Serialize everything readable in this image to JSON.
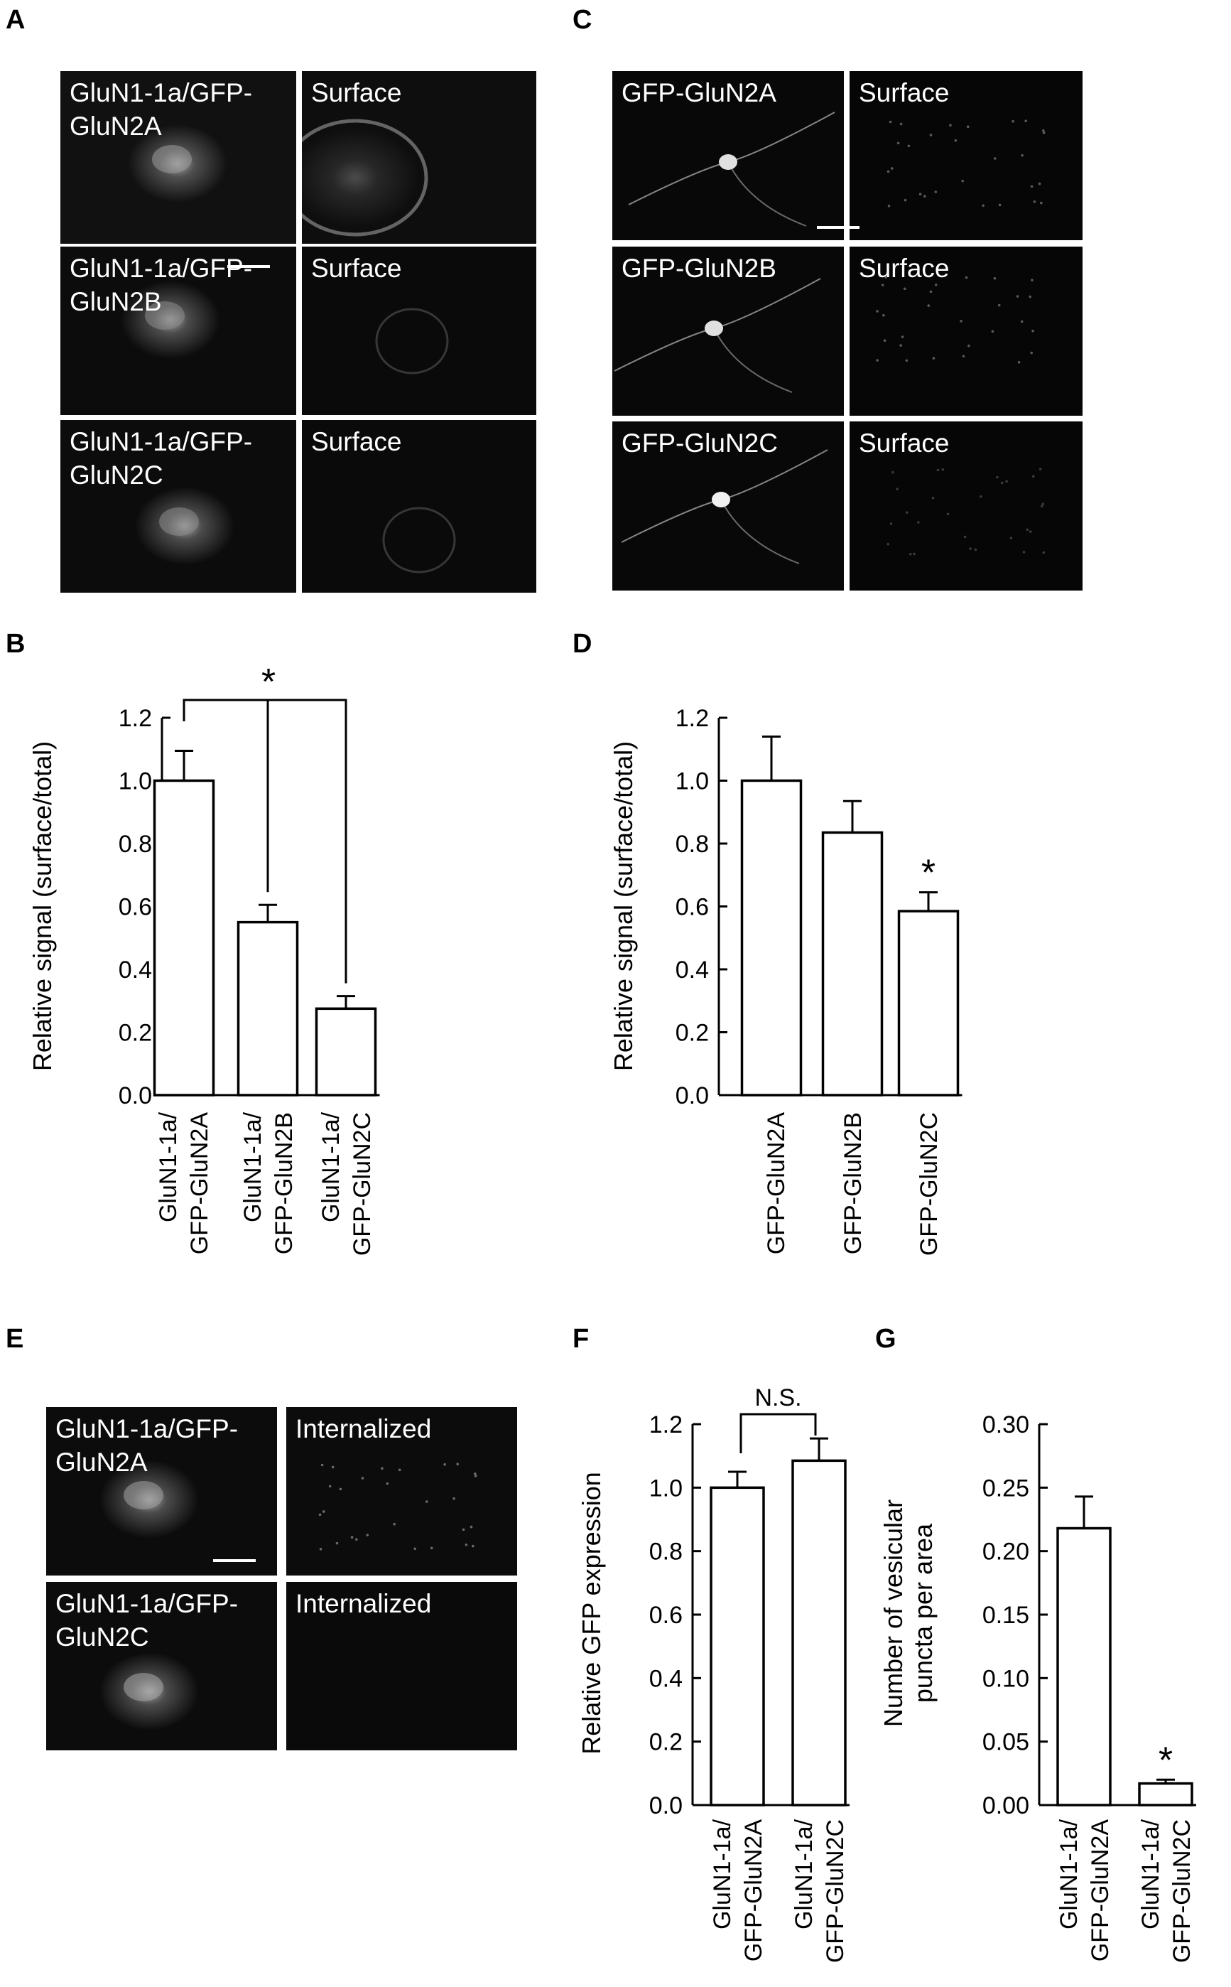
{
  "panels": {
    "A": {
      "label": "A",
      "cells": [
        {
          "lines": [
            "GluN1-1a/GFP-",
            "GluN2A"
          ],
          "bg": "#111111",
          "glow": "#9a9a9a"
        },
        {
          "lines": [
            "Surface"
          ],
          "bg": "#0e0e0e",
          "glow": "#7a7a7a"
        },
        {
          "lines": [
            "GluN1-1a/GFP-",
            "GluN2B"
          ],
          "bg": "#0c0c0c",
          "glow": "#8a8a8a"
        },
        {
          "lines": [
            "Surface"
          ],
          "bg": "#0a0a0a",
          "glow": "#4a4a4a"
        },
        {
          "lines": [
            "GluN1-1a/GFP-",
            "GluN2C"
          ],
          "bg": "#0c0c0c",
          "glow": "#8c8c8c"
        },
        {
          "lines": [
            "Surface"
          ],
          "bg": "#0a0a0a",
          "glow": "#4a4a4a"
        }
      ]
    },
    "C": {
      "label": "C",
      "cells": [
        {
          "lines": [
            "GFP-GluN2A"
          ],
          "bg": "#080808",
          "glow": "#e0e0e0"
        },
        {
          "lines": [
            "Surface"
          ],
          "bg": "#060606",
          "glow": "#5a5a5a"
        },
        {
          "lines": [
            "GFP-GluN2B"
          ],
          "bg": "#080808",
          "glow": "#e0e0e0"
        },
        {
          "lines": [
            "Surface"
          ],
          "bg": "#060606",
          "glow": "#5a5a5a"
        },
        {
          "lines": [
            "GFP-GluN2C"
          ],
          "bg": "#080808",
          "glow": "#f0f0f0"
        },
        {
          "lines": [
            "Surface"
          ],
          "bg": "#060606",
          "glow": "#3a3a3a"
        }
      ]
    },
    "E": {
      "label": "E",
      "cells": [
        {
          "lines": [
            "GluN1-1a/GFP-",
            "GluN2A"
          ],
          "bg": "#0c0c0c",
          "glow": "#a0a0a0"
        },
        {
          "lines": [
            "Internalized"
          ],
          "bg": "#0c0c0c",
          "glow": "#6a6a6a"
        },
        {
          "lines": [
            "GluN1-1a/GFP-",
            "GluN2C"
          ],
          "bg": "#0c0c0c",
          "glow": "#a8a8a8"
        },
        {
          "lines": [
            "Internalized"
          ],
          "bg": "#0a0a0a",
          "glow": "#1a1a1a"
        }
      ]
    }
  },
  "chart_data": [
    {
      "panel": "B",
      "type": "bar",
      "ylabel": "Relative signal (surface/total)",
      "ylim": [
        0,
        1.2
      ],
      "yticks": [
        "0.0",
        "0.2",
        "0.4",
        "0.6",
        "0.8",
        "1.0",
        "1.2"
      ],
      "categories": [
        [
          "GluN1-1a/",
          "GFP-GluN2A"
        ],
        [
          "GluN1-1a/",
          "GFP-GluN2B"
        ],
        [
          "GluN1-1a/",
          "GFP-GluN2C"
        ]
      ],
      "values": [
        1.0,
        0.55,
        0.275
      ],
      "errors": [
        0.095,
        0.055,
        0.04
      ],
      "annotation": "*"
    },
    {
      "panel": "D",
      "type": "bar",
      "ylabel": "Relative signal (surface/total)",
      "ylim": [
        0,
        1.2
      ],
      "yticks": [
        "0.0",
        "0.2",
        "0.4",
        "0.6",
        "0.8",
        "1.0",
        "1.2"
      ],
      "categories": [
        [
          "GFP-GluN2A"
        ],
        [
          "GFP-GluN2B"
        ],
        [
          "GFP-GluN2C"
        ]
      ],
      "values": [
        1.0,
        0.835,
        0.585
      ],
      "errors": [
        0.14,
        0.1,
        0.06
      ],
      "annotation": "*"
    },
    {
      "panel": "F",
      "type": "bar",
      "ylabel": "Relative GFP expression",
      "ylim": [
        0,
        1.2
      ],
      "yticks": [
        "0.0",
        "0.2",
        "0.4",
        "0.6",
        "0.8",
        "1.0",
        "1.2"
      ],
      "categories": [
        [
          "GluN1-1a/",
          "GFP-GluN2A"
        ],
        [
          "GluN1-1a/",
          "GFP-GluN2C"
        ]
      ],
      "values": [
        1.0,
        1.085
      ],
      "errors": [
        0.05,
        0.07
      ],
      "annotation": "N.S."
    },
    {
      "panel": "G",
      "type": "bar",
      "ylabel": [
        "Number of vesicular",
        "puncta per area"
      ],
      "ylim": [
        0,
        0.3
      ],
      "yticks": [
        "0.00",
        "0.05",
        "0.10",
        "0.15",
        "0.20",
        "0.25",
        "0.30"
      ],
      "categories": [
        [
          "GluN1-1a/",
          "GFP-GluN2A"
        ],
        [
          "GluN1-1a/",
          "GFP-GluN2C"
        ]
      ],
      "values": [
        0.218,
        0.017
      ],
      "errors": [
        0.025,
        0.003
      ],
      "annotation": "*"
    }
  ]
}
